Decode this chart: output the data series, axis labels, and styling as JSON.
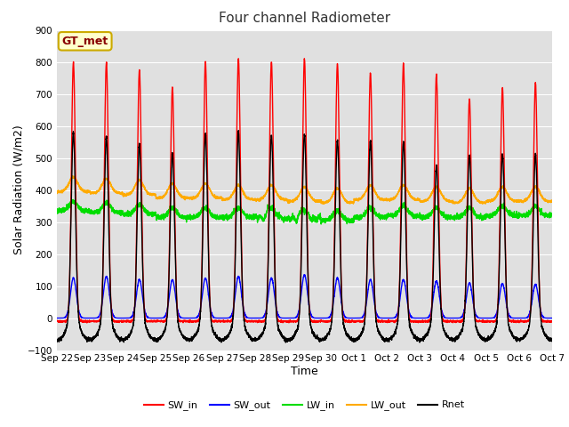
{
  "title": "Four channel Radiometer",
  "xlabel": "Time",
  "ylabel": "Solar Radiation (W/m2)",
  "ylim": [
    -100,
    900
  ],
  "yticks": [
    -100,
    0,
    100,
    200,
    300,
    400,
    500,
    600,
    700,
    800,
    900
  ],
  "fig_bg_color": "#ffffff",
  "plot_bg_color": "#e0e0e0",
  "grid_color": "#ffffff",
  "annotation_text": "GT_met",
  "annotation_bg": "#ffffcc",
  "annotation_border": "#ccaa00",
  "annotation_text_color": "#880000",
  "series": {
    "SW_in": {
      "color": "#ff0000",
      "lw": 1.0
    },
    "SW_out": {
      "color": "#0000ff",
      "lw": 1.0
    },
    "LW_in": {
      "color": "#00dd00",
      "lw": 1.0
    },
    "LW_out": {
      "color": "#ffaa00",
      "lw": 1.0
    },
    "Rnet": {
      "color": "#000000",
      "lw": 1.0
    }
  },
  "n_days": 15,
  "pts_per_day": 288,
  "tick_labels": [
    "Sep 22",
    "Sep 23",
    "Sep 24",
    "Sep 25",
    "Sep 26",
    "Sep 27",
    "Sep 28",
    "Sep 29",
    "Sep 30",
    "Oct 1",
    "Oct 2",
    "Oct 3",
    "Oct 4",
    "Oct 5",
    "Oct 6",
    "Oct 7"
  ],
  "tick_positions": [
    0,
    1,
    2,
    3,
    4,
    5,
    6,
    7,
    8,
    9,
    10,
    11,
    12,
    13,
    14,
    15
  ]
}
